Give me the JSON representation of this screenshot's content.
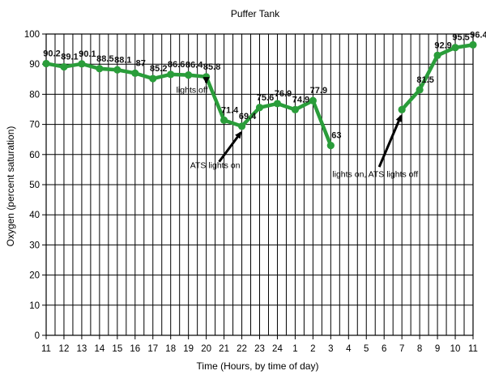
{
  "chart_data": {
    "type": "line",
    "title": "Puffer Tank",
    "xlabel": "Time (Hours, by time of day)",
    "ylabel": "Oxygen (percent saturation)",
    "ylim": [
      0,
      100
    ],
    "yticks": [
      0,
      10,
      20,
      30,
      40,
      50,
      60,
      70,
      80,
      90,
      100
    ],
    "grid": true,
    "x_tick_labels": [
      "11",
      "12",
      "13",
      "14",
      "15",
      "16",
      "17",
      "18",
      "19",
      "20",
      "21",
      "22",
      "23",
      "24",
      "1",
      "2",
      "3",
      "4",
      "5",
      "6",
      "7",
      "8",
      "9",
      "10",
      "11"
    ],
    "line_color": "#2a9d3a",
    "segments": [
      {
        "x": [
          0,
          1,
          2,
          3,
          4,
          5,
          6,
          7,
          8,
          9,
          10,
          11,
          12,
          13,
          14,
          15,
          16
        ],
        "values": [
          90.2,
          89.1,
          90.1,
          88.5,
          88.1,
          87,
          85.2,
          86.6,
          86.4,
          85.8,
          71.4,
          69.4,
          75.6,
          76.9,
          74.9,
          77.9,
          63
        ],
        "labels": [
          "90.2",
          "89.1",
          "90.1",
          "88.5",
          "88.1",
          "87",
          "85.2",
          "86.6",
          "86.4",
          "85.8",
          "71.4",
          "69.4",
          "75.6",
          "76.9",
          "74.9",
          "77.9",
          "63"
        ]
      },
      {
        "x": [
          20,
          21,
          22,
          23,
          24
        ],
        "values": [
          74.9,
          81.5,
          92.9,
          95.5,
          96.4
        ],
        "labels": [
          "",
          "81.5",
          "92.9",
          "95.5",
          "96.4"
        ]
      }
    ],
    "annotations": [
      {
        "text": "lights off",
        "x": 8.2,
        "y": 80.5,
        "arrow_to": [
          9,
          86
        ]
      },
      {
        "text": "ATS lights on",
        "x": 9.5,
        "y": 55.5,
        "arrow_to": [
          11,
          69.5
        ]
      },
      {
        "text": "lights on, ATS lights off",
        "x": 18.5,
        "y": 52.5,
        "arrow_to": [
          20,
          75
        ]
      }
    ]
  }
}
